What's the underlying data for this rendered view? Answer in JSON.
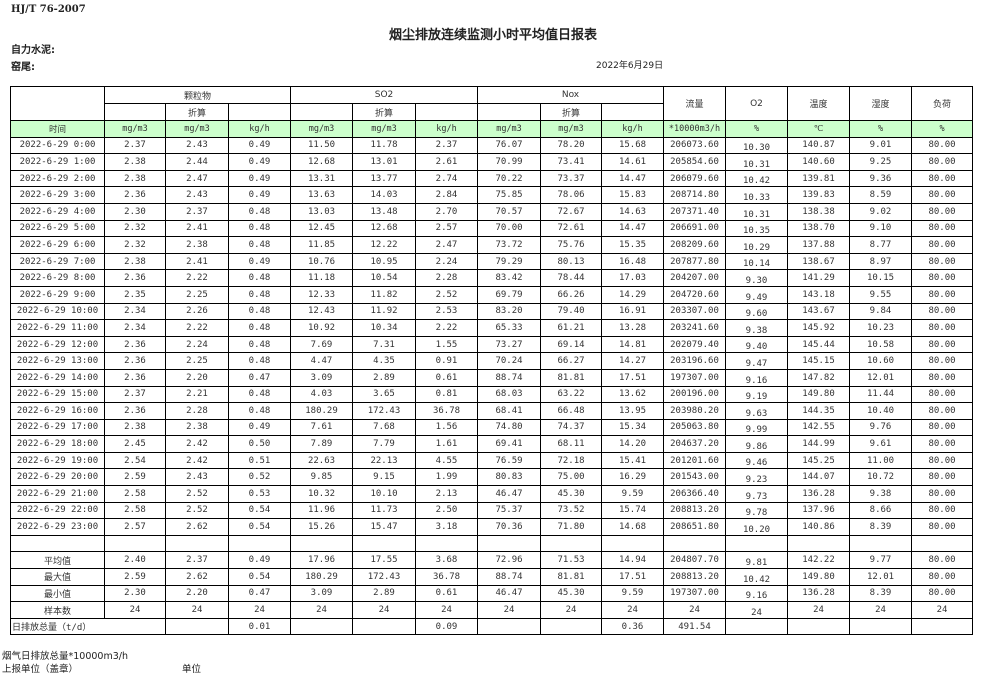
{
  "header": {
    "standard": "HJ/T  76-2007",
    "title": "烟尘排放连续监测小时平均值日报表",
    "company_label": "自力水泥:",
    "kiln_label": "窑尾:",
    "date": "2022年6月29日"
  },
  "table": {
    "groups": [
      "颗粒物",
      "SO2",
      "Nox"
    ],
    "converted_label": "折算",
    "extra_headers": [
      "流量",
      "O2",
      "温度",
      "湿度",
      "负荷"
    ],
    "units": [
      "时间",
      "mg/m3",
      "mg/m3",
      "kg/h",
      "mg/m3",
      "mg/m3",
      "kg/h",
      "mg/m3",
      "mg/m3",
      "kg/h",
      "*10000m3/h",
      "%",
      "℃",
      "%",
      "%"
    ],
    "rows": [
      [
        "2022-6-29 0:00",
        "2.37",
        "2.43",
        "0.49",
        "11.50",
        "11.78",
        "2.37",
        "76.07",
        "78.20",
        "15.68",
        "206073.60",
        "10.30",
        "140.87",
        "9.01",
        "80.00"
      ],
      [
        "2022-6-29 1:00",
        "2.38",
        "2.44",
        "0.49",
        "12.68",
        "13.01",
        "2.61",
        "70.99",
        "73.41",
        "14.61",
        "205854.60",
        "10.31",
        "140.60",
        "9.25",
        "80.00"
      ],
      [
        "2022-6-29 2:00",
        "2.38",
        "2.47",
        "0.49",
        "13.31",
        "13.77",
        "2.74",
        "70.22",
        "73.37",
        "14.47",
        "206079.60",
        "10.42",
        "139.81",
        "9.36",
        "80.00"
      ],
      [
        "2022-6-29 3:00",
        "2.36",
        "2.43",
        "0.49",
        "13.63",
        "14.03",
        "2.84",
        "75.85",
        "78.06",
        "15.83",
        "208714.80",
        "10.33",
        "139.83",
        "8.59",
        "80.00"
      ],
      [
        "2022-6-29 4:00",
        "2.30",
        "2.37",
        "0.48",
        "13.03",
        "13.48",
        "2.70",
        "70.57",
        "72.67",
        "14.63",
        "207371.40",
        "10.31",
        "138.38",
        "9.02",
        "80.00"
      ],
      [
        "2022-6-29 5:00",
        "2.32",
        "2.41",
        "0.48",
        "12.45",
        "12.68",
        "2.57",
        "70.00",
        "72.61",
        "14.47",
        "206691.00",
        "10.35",
        "138.70",
        "9.10",
        "80.00"
      ],
      [
        "2022-6-29 6:00",
        "2.32",
        "2.38",
        "0.48",
        "11.85",
        "12.22",
        "2.47",
        "73.72",
        "75.76",
        "15.35",
        "208209.60",
        "10.29",
        "137.88",
        "8.77",
        "80.00"
      ],
      [
        "2022-6-29 7:00",
        "2.38",
        "2.41",
        "0.49",
        "10.76",
        "10.95",
        "2.24",
        "79.29",
        "80.13",
        "16.48",
        "207877.80",
        "10.14",
        "138.67",
        "8.97",
        "80.00"
      ],
      [
        "2022-6-29 8:00",
        "2.36",
        "2.22",
        "0.48",
        "11.18",
        "10.54",
        "2.28",
        "83.42",
        "78.44",
        "17.03",
        "204207.00",
        "9.30",
        "141.29",
        "10.15",
        "80.00"
      ],
      [
        "2022-6-29 9:00",
        "2.35",
        "2.25",
        "0.48",
        "12.33",
        "11.82",
        "2.52",
        "69.79",
        "66.26",
        "14.29",
        "204720.60",
        "9.49",
        "143.18",
        "9.55",
        "80.00"
      ],
      [
        "2022-6-29 10:00",
        "2.34",
        "2.26",
        "0.48",
        "12.43",
        "11.92",
        "2.53",
        "83.20",
        "79.40",
        "16.91",
        "203307.00",
        "9.60",
        "143.67",
        "9.84",
        "80.00"
      ],
      [
        "2022-6-29 11:00",
        "2.34",
        "2.22",
        "0.48",
        "10.92",
        "10.34",
        "2.22",
        "65.33",
        "61.21",
        "13.28",
        "203241.60",
        "9.38",
        "145.92",
        "10.23",
        "80.00"
      ],
      [
        "2022-6-29 12:00",
        "2.36",
        "2.24",
        "0.48",
        "7.69",
        "7.31",
        "1.55",
        "73.27",
        "69.14",
        "14.81",
        "202079.40",
        "9.40",
        "145.44",
        "10.58",
        "80.00"
      ],
      [
        "2022-6-29 13:00",
        "2.36",
        "2.25",
        "0.48",
        "4.47",
        "4.35",
        "0.91",
        "70.24",
        "66.27",
        "14.27",
        "203196.60",
        "9.47",
        "145.15",
        "10.60",
        "80.00"
      ],
      [
        "2022-6-29 14:00",
        "2.36",
        "2.20",
        "0.47",
        "3.09",
        "2.89",
        "0.61",
        "88.74",
        "81.81",
        "17.51",
        "197307.00",
        "9.16",
        "147.82",
        "12.01",
        "80.00"
      ],
      [
        "2022-6-29 15:00",
        "2.37",
        "2.21",
        "0.48",
        "4.03",
        "3.65",
        "0.81",
        "68.03",
        "63.22",
        "13.62",
        "200196.00",
        "9.19",
        "149.80",
        "11.44",
        "80.00"
      ],
      [
        "2022-6-29 16:00",
        "2.36",
        "2.28",
        "0.48",
        "180.29",
        "172.43",
        "36.78",
        "68.41",
        "66.48",
        "13.95",
        "203980.20",
        "9.63",
        "144.35",
        "10.40",
        "80.00"
      ],
      [
        "2022-6-29 17:00",
        "2.38",
        "2.38",
        "0.49",
        "7.61",
        "7.68",
        "1.56",
        "74.80",
        "74.37",
        "15.34",
        "205063.80",
        "9.99",
        "142.55",
        "9.76",
        "80.00"
      ],
      [
        "2022-6-29 18:00",
        "2.45",
        "2.42",
        "0.50",
        "7.89",
        "7.79",
        "1.61",
        "69.41",
        "68.11",
        "14.20",
        "204637.20",
        "9.86",
        "144.99",
        "9.61",
        "80.00"
      ],
      [
        "2022-6-29 19:00",
        "2.54",
        "2.42",
        "0.51",
        "22.63",
        "22.13",
        "4.55",
        "76.59",
        "72.18",
        "15.41",
        "201201.60",
        "9.46",
        "145.25",
        "11.00",
        "80.00"
      ],
      [
        "2022-6-29 20:00",
        "2.59",
        "2.43",
        "0.52",
        "9.85",
        "9.15",
        "1.99",
        "80.83",
        "75.00",
        "16.29",
        "201543.00",
        "9.23",
        "144.07",
        "10.72",
        "80.00"
      ],
      [
        "2022-6-29 21:00",
        "2.58",
        "2.52",
        "0.53",
        "10.32",
        "10.10",
        "2.13",
        "46.47",
        "45.30",
        "9.59",
        "206366.40",
        "9.73",
        "136.28",
        "9.38",
        "80.00"
      ],
      [
        "2022-6-29 22:00",
        "2.58",
        "2.52",
        "0.54",
        "11.96",
        "11.73",
        "2.50",
        "75.37",
        "73.52",
        "15.74",
        "208813.20",
        "9.78",
        "137.96",
        "8.66",
        "80.00"
      ],
      [
        "2022-6-29 23:00",
        "2.57",
        "2.62",
        "0.54",
        "15.26",
        "15.47",
        "3.18",
        "70.36",
        "71.80",
        "14.68",
        "208651.80",
        "10.20",
        "140.86",
        "8.39",
        "80.00"
      ]
    ],
    "summary": [
      [
        "平均值",
        "2.40",
        "2.37",
        "0.49",
        "17.96",
        "17.55",
        "3.68",
        "72.96",
        "71.53",
        "14.94",
        "204807.70",
        "9.81",
        "142.22",
        "9.77",
        "80.00"
      ],
      [
        "最大值",
        "2.59",
        "2.62",
        "0.54",
        "180.29",
        "172.43",
        "36.78",
        "88.74",
        "81.81",
        "17.51",
        "208813.20",
        "10.42",
        "149.80",
        "12.01",
        "80.00"
      ],
      [
        "最小值",
        "2.30",
        "2.20",
        "0.47",
        "3.09",
        "2.89",
        "0.61",
        "46.47",
        "45.30",
        "9.59",
        "197307.00",
        "9.16",
        "136.28",
        "8.39",
        "80.00"
      ],
      [
        "样本数",
        "24",
        "24",
        "24",
        "24",
        "24",
        "24",
        "24",
        "24",
        "24",
        "24",
        "24",
        "24",
        "24",
        "24"
      ]
    ],
    "daily_total": {
      "label": "日排放总量（t/d）",
      "particulate_kg": "0.01",
      "so2_kg": "0.09",
      "nox_kg": "0.36",
      "flow": "491.54"
    }
  },
  "footer": {
    "flue_gas_total_label": "烟气日排放总量*10000m3/h",
    "reporting_unit_label": "上报单位（盖章）",
    "unit_label": "单位"
  },
  "colors": {
    "unit_row_bg": "#ccffcc"
  }
}
